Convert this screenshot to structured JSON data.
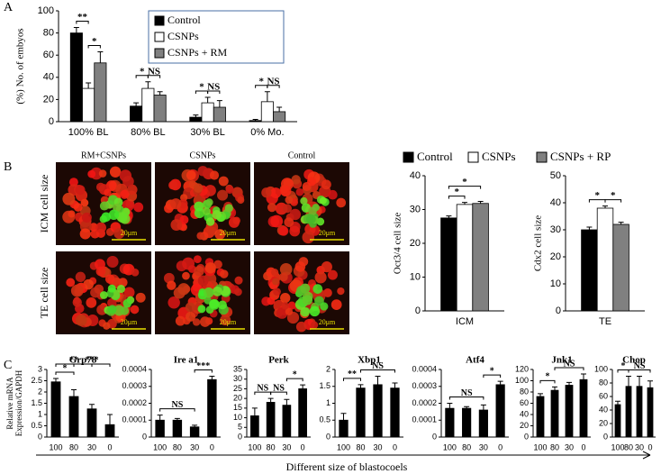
{
  "panels": {
    "a": "A",
    "b": "B",
    "c": "C"
  },
  "panel_b": {
    "columns": [
      "RM+CSNPs",
      "CSNPs",
      "Control"
    ],
    "rows": [
      "ICM cell size",
      "TE cell size"
    ],
    "scale_bar": "20μm"
  },
  "panel_c": {
    "xlabel": "Different  size  of  blastocoels"
  },
  "chart_data": [
    {
      "type": "bar",
      "ylabel": "(%) No. of embyos",
      "categories": [
        "100% BL",
        "80% BL",
        "30% BL",
        "0% Mo."
      ],
      "series": [
        {
          "name": "Control",
          "color": "#000000",
          "values": [
            80,
            14,
            4,
            1
          ],
          "errors": [
            5,
            3,
            2,
            1
          ]
        },
        {
          "name": "CSNPs",
          "color": "#ffffff",
          "values": [
            30,
            30,
            17,
            18
          ],
          "errors": [
            5,
            6,
            5,
            9
          ]
        },
        {
          "name": "CSNPs + RM",
          "color": "#808080",
          "values": [
            53,
            24,
            13,
            9
          ],
          "errors": [
            10,
            3,
            6,
            4
          ]
        }
      ],
      "ylim": [
        0,
        100
      ],
      "yticks": [
        0,
        20,
        40,
        60,
        80,
        100
      ],
      "annotations": [
        {
          "text": "**",
          "category": 0,
          "pair": [
            0,
            1
          ]
        },
        {
          "text": "*",
          "category": 0,
          "pair": [
            1,
            2
          ]
        },
        {
          "text": "*",
          "category": 1,
          "pair": [
            0,
            1
          ]
        },
        {
          "text": "NS",
          "category": 1,
          "pair": [
            1,
            2
          ]
        },
        {
          "text": "*",
          "category": 2,
          "pair": [
            0,
            1
          ]
        },
        {
          "text": "NS",
          "category": 2,
          "pair": [
            1,
            2
          ]
        },
        {
          "text": "*",
          "category": 3,
          "pair": [
            0,
            1
          ]
        },
        {
          "text": "NS",
          "category": 3,
          "pair": [
            1,
            2
          ]
        }
      ]
    },
    {
      "type": "bar",
      "ylabel": "Oct3/4  cell size",
      "categories": [
        "ICM"
      ],
      "series": [
        {
          "name": "Control",
          "color": "#000000",
          "values": [
            27.5
          ],
          "errors": [
            0.6
          ]
        },
        {
          "name": "CSNPs",
          "color": "#ffffff",
          "values": [
            31.5
          ],
          "errors": [
            0.6
          ]
        },
        {
          "name": "CSNPs + RP",
          "color": "#808080",
          "values": [
            31.8
          ],
          "errors": [
            0.6
          ]
        }
      ],
      "ylim": [
        0,
        40
      ],
      "yticks": [
        0,
        10,
        20,
        30,
        40
      ],
      "annotations": [
        {
          "text": "*",
          "category": 0,
          "pair": [
            0,
            1
          ]
        },
        {
          "text": "*",
          "category": 0,
          "pair": [
            0,
            2
          ]
        }
      ]
    },
    {
      "type": "bar",
      "ylabel": "Cdx2  cell size",
      "categories": [
        "TE"
      ],
      "series": [
        {
          "color": "#000000",
          "values": [
            30
          ],
          "errors": [
            1
          ]
        },
        {
          "color": "#ffffff",
          "values": [
            38
          ],
          "errors": [
            0.8
          ]
        },
        {
          "color": "#808080",
          "values": [
            32
          ],
          "errors": [
            0.8
          ]
        }
      ],
      "ylim": [
        0,
        50
      ],
      "yticks": [
        0,
        10,
        20,
        30,
        40,
        50
      ],
      "annotations": [
        {
          "text": "*",
          "category": 0,
          "pair": [
            0,
            1
          ]
        },
        {
          "text": "*",
          "category": 0,
          "pair": [
            1,
            2
          ]
        }
      ]
    },
    {
      "type": "bar",
      "title": "Grp78",
      "ylabel": [
        "Relative mRNA",
        "Expression/GAPDH"
      ],
      "categories": [
        "100",
        "80",
        "30",
        "0"
      ],
      "series": [
        {
          "color": "#000000",
          "values": [
            2.45,
            1.8,
            1.25,
            0.55
          ],
          "errors": [
            0.15,
            0.3,
            0.2,
            0.45
          ]
        }
      ],
      "ylim": [
        0,
        3
      ],
      "yticks": [
        0,
        0.5,
        1,
        1.5,
        2,
        2.5,
        3
      ],
      "annotations": [
        {
          "text": "*",
          "pair": [
            0,
            1
          ]
        },
        {
          "text": "**",
          "pair": [
            0,
            2
          ]
        },
        {
          "text": "***",
          "pair": [
            1,
            3
          ]
        }
      ]
    },
    {
      "type": "bar",
      "title": "Ire a1",
      "categories": [
        "100",
        "80",
        "30",
        "0"
      ],
      "series": [
        {
          "color": "#000000",
          "values": [
            0.0001,
            0.0001,
            6e-05,
            0.00034
          ],
          "errors": [
            3e-05,
            1e-05,
            1e-05,
            2e-05
          ]
        }
      ],
      "ylim": [
        0,
        0.0004
      ],
      "yticks": [
        0,
        0.0001,
        0.0002,
        0.0003,
        0.0004
      ],
      "annotations": [
        {
          "text": "NS",
          "pair": [
            0,
            2
          ]
        },
        {
          "text": "***",
          "pair": [
            2,
            3
          ]
        }
      ]
    },
    {
      "type": "bar",
      "title": "Perk",
      "categories": [
        "100",
        "80",
        "30",
        "0"
      ],
      "series": [
        {
          "color": "#000000",
          "values": [
            11,
            18,
            16.5,
            25
          ],
          "errors": [
            4,
            2,
            3,
            2
          ]
        }
      ],
      "ylim": [
        0,
        35
      ],
      "yticks": [
        0,
        5,
        10,
        15,
        20,
        25,
        30,
        35
      ],
      "annotations": [
        {
          "text": "NS",
          "pair": [
            0,
            1
          ]
        },
        {
          "text": "NS",
          "pair": [
            1,
            2
          ]
        },
        {
          "text": "*",
          "pair": [
            2,
            3
          ]
        }
      ]
    },
    {
      "type": "bar",
      "title": "Xbp1",
      "categories": [
        "100",
        "80",
        "30",
        "0"
      ],
      "series": [
        {
          "color": "#000000",
          "values": [
            0.5,
            1.45,
            1.55,
            1.45
          ],
          "errors": [
            0.2,
            0.1,
            0.25,
            0.15
          ]
        }
      ],
      "ylim": [
        0,
        2
      ],
      "yticks": [
        0,
        0.5,
        1,
        1.5,
        2
      ],
      "annotations": [
        {
          "text": "**",
          "pair": [
            0,
            1
          ]
        },
        {
          "text": "NS",
          "pair": [
            1,
            3
          ]
        }
      ]
    },
    {
      "type": "bar",
      "title": "Atf4",
      "categories": [
        "100",
        "80",
        "30",
        "0"
      ],
      "series": [
        {
          "color": "#000000",
          "values": [
            0.00017,
            0.00017,
            0.00016,
            0.00031
          ],
          "errors": [
            3e-05,
            1e-05,
            3e-05,
            2e-05
          ]
        }
      ],
      "ylim": [
        0,
        0.0004
      ],
      "yticks": [
        0,
        0.0001,
        0.0002,
        0.0003,
        0.0004
      ],
      "annotations": [
        {
          "text": "NS",
          "pair": [
            0,
            2
          ]
        },
        {
          "text": "*",
          "pair": [
            2,
            3
          ]
        }
      ]
    },
    {
      "type": "bar",
      "title": "Jnk1",
      "categories": [
        "100",
        "80",
        "30",
        "0"
      ],
      "series": [
        {
          "color": "#000000",
          "values": [
            72,
            83,
            92,
            102
          ],
          "errors": [
            5,
            6,
            5,
            10
          ]
        }
      ],
      "ylim": [
        0,
        120
      ],
      "yticks": [
        0,
        20,
        40,
        60,
        80,
        100,
        120
      ],
      "annotations": [
        {
          "text": "*",
          "pair": [
            0,
            1
          ]
        },
        {
          "text": "NS",
          "pair": [
            1,
            3
          ]
        }
      ]
    },
    {
      "type": "bar",
      "title": "Chop",
      "categories": [
        "100",
        "80",
        "30",
        "0"
      ],
      "series": [
        {
          "color": "#000000",
          "values": [
            48,
            75,
            75,
            73
          ],
          "errors": [
            5,
            15,
            15,
            10
          ]
        }
      ],
      "ylim": [
        0,
        100
      ],
      "yticks": [
        0,
        20,
        40,
        60,
        80,
        100
      ],
      "annotations": [
        {
          "text": "*",
          "pair": [
            0,
            1
          ]
        },
        {
          "text": "NS",
          "pair": [
            1,
            3
          ]
        }
      ]
    }
  ]
}
